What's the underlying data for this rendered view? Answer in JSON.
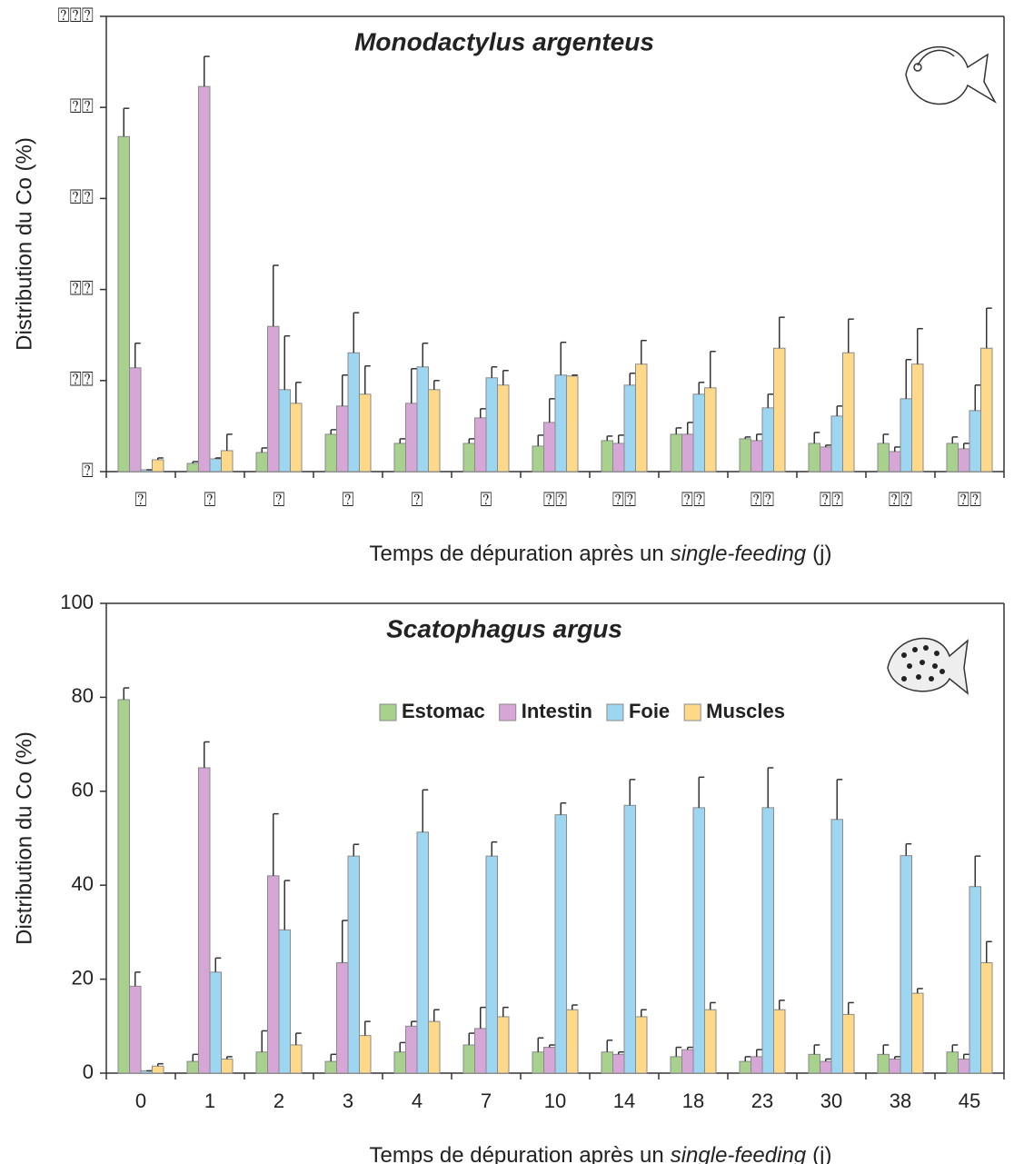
{
  "chart_data": [
    {
      "type": "bar",
      "title": "Monodactylus argenteus",
      "ylabel": "Distribution du Co (%)",
      "xlabel": {
        "parts": [
          "Temps de dépuration après un",
          "single-feeding",
          "(j)"
        ],
        "italic": [
          false,
          true,
          false
        ]
      },
      "categories": [
        "⍰",
        "⍰",
        "⍰",
        "⍰",
        "⍰",
        "⍰",
        "⍰⍰",
        "⍰⍰",
        "⍰⍰",
        "⍰⍰",
        "⍰⍰",
        "⍰⍰",
        "⍰⍰"
      ],
      "ylim": [
        0,
        100
      ],
      "yticks": [
        {
          "value": 0,
          "label": "⍰"
        },
        {
          "value": 20,
          "label": "⍰⍰"
        },
        {
          "value": 40,
          "label": "⍰⍰"
        },
        {
          "value": 60,
          "label": "⍰⍰"
        },
        {
          "value": 80,
          "label": "⍰⍰"
        },
        {
          "value": 100,
          "label": "⍰⍰⍰"
        }
      ],
      "series": [
        {
          "color": "#a9d18e",
          "values": [
            73.6,
            1.8,
            4.2,
            8.2,
            6.2,
            6.2,
            5.6,
            6.8,
            8.2,
            7.2,
            6.2,
            6.2,
            6.2
          ],
          "errors": [
            6.2,
            0.4,
            1,
            1,
            1,
            1,
            2.4,
            1,
            1.4,
            0.4,
            2.4,
            2,
            1.4
          ]
        },
        {
          "color": "#d5a6d6",
          "values": [
            22.8,
            84.6,
            31.9,
            14.4,
            15,
            11.8,
            10.8,
            6.2,
            8.2,
            6.8,
            5.4,
            4.4,
            5
          ],
          "errors": [
            5.4,
            6.6,
            13.4,
            6.8,
            7.6,
            2,
            5.2,
            1.8,
            2.6,
            1.4,
            0.4,
            1,
            1.2
          ]
        },
        {
          "color": "#9dd6f0",
          "values": [
            0.4,
            2.8,
            18,
            26.1,
            23,
            20.6,
            21.2,
            19,
            17,
            14,
            12.2,
            16,
            13.4
          ],
          "errors": [
            0,
            0.2,
            11.8,
            8.8,
            5.2,
            2.4,
            7.2,
            2.6,
            2.6,
            3,
            2.2,
            8.6,
            5.6
          ]
        },
        {
          "color": "#ffd98a",
          "values": [
            2.6,
            4.6,
            15,
            17,
            18,
            19,
            21,
            23.6,
            18.4,
            27.1,
            26.1,
            23.6,
            27.1
          ],
          "errors": [
            0.4,
            3.6,
            4.6,
            6.2,
            2,
            3.2,
            0.2,
            5.2,
            8,
            6.8,
            7.4,
            7.8,
            8.8
          ]
        }
      ]
    },
    {
      "type": "bar",
      "title": "Scatophagus argus",
      "ylabel": "Distribution du Co (%)",
      "xlabel": {
        "parts": [
          "Temps de dépuration après un",
          "single-feeding",
          "(j)"
        ],
        "italic": [
          false,
          true,
          false
        ]
      },
      "categories": [
        "0",
        "1",
        "2",
        "3",
        "4",
        "7",
        "10",
        "14",
        "18",
        "23",
        "30",
        "38",
        "45"
      ],
      "ylim": [
        0,
        100
      ],
      "yticks": [
        0,
        20,
        40,
        60,
        80,
        100
      ],
      "legend": "top-center",
      "series": [
        {
          "name": "Estomac",
          "color": "#a9d18e",
          "values": [
            79.5,
            2.5,
            4.5,
            2.5,
            4.5,
            6,
            4.5,
            4.5,
            3.5,
            2.5,
            4,
            4,
            4.5
          ],
          "errors": [
            2.5,
            1.5,
            4.5,
            1.5,
            2,
            2.5,
            3,
            2.5,
            2,
            1,
            2,
            2,
            1.5
          ]
        },
        {
          "name": "Intestin",
          "color": "#d5a6d6",
          "values": [
            18.5,
            65,
            42,
            23.5,
            10,
            9.5,
            5.5,
            4,
            5,
            3.5,
            2.5,
            3,
            3
          ],
          "errors": [
            3,
            5.5,
            13.2,
            9,
            1,
            4.5,
            0.5,
            0.5,
            0.5,
            1.5,
            0.5,
            0.5,
            1
          ]
        },
        {
          "name": "Foie",
          "color": "#9dd6f0",
          "values": [
            0.5,
            21.5,
            30.5,
            46.2,
            51.3,
            46.2,
            55,
            57,
            56.5,
            56.5,
            54,
            46.3,
            39.7
          ],
          "errors": [
            0,
            3,
            10.5,
            2.5,
            9,
            3,
            2.5,
            5.5,
            6.5,
            8.5,
            8.5,
            2.5,
            6.5
          ]
        },
        {
          "name": "Muscles",
          "color": "#ffd98a",
          "values": [
            1.5,
            3,
            6,
            8,
            11,
            12,
            13.5,
            12,
            13.5,
            13.5,
            12.5,
            17,
            23.5
          ],
          "errors": [
            0.5,
            0.5,
            2.5,
            3,
            2.5,
            2,
            1,
            1.5,
            1.5,
            2,
            2.5,
            1,
            4.5
          ]
        }
      ]
    }
  ]
}
